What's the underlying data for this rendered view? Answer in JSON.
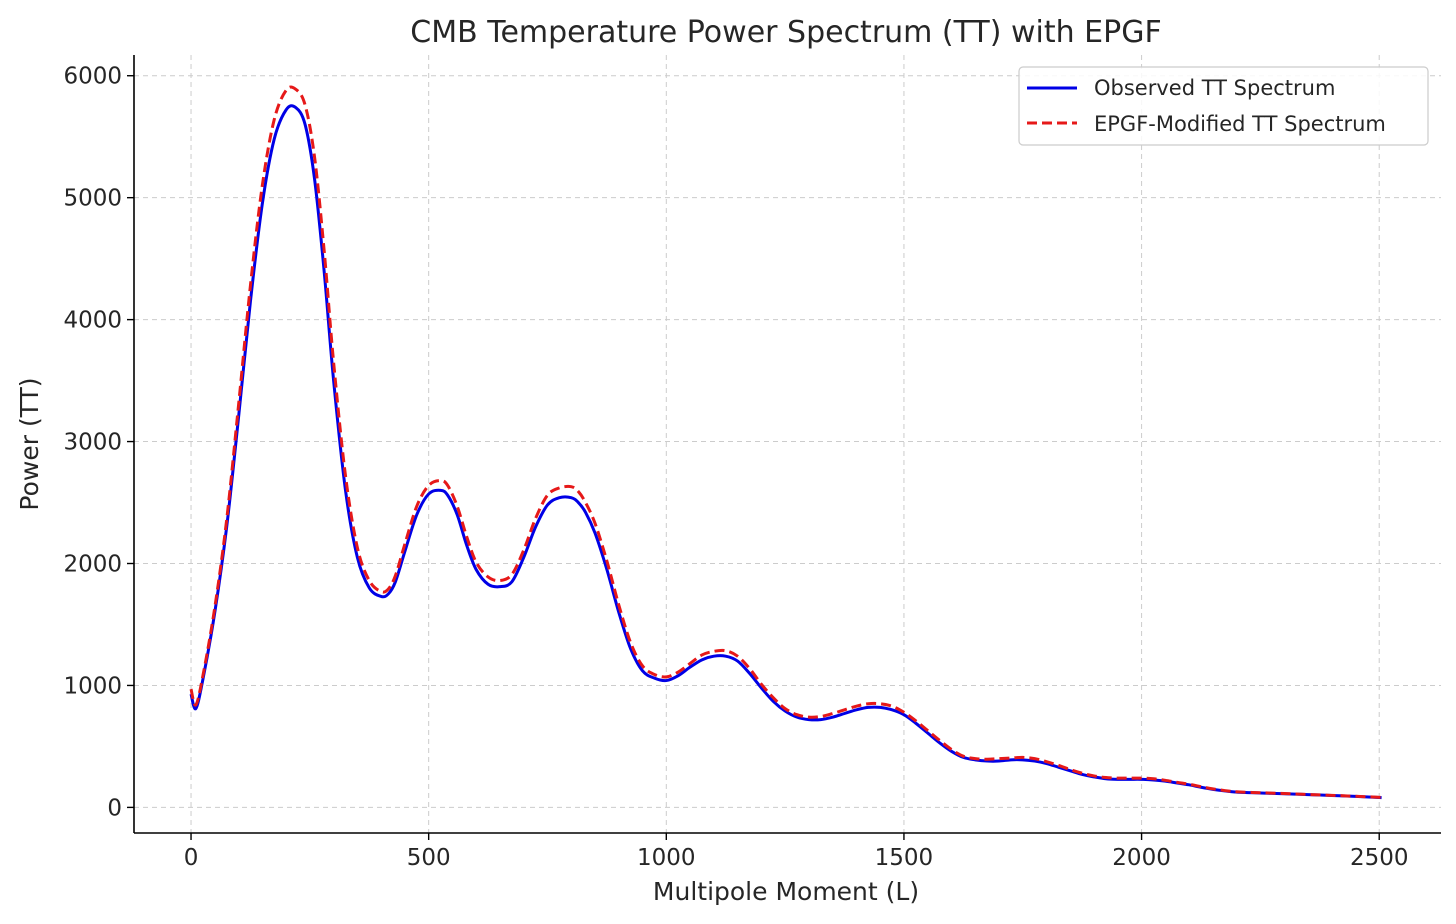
{
  "chart_data": {
    "type": "line",
    "title": "CMB Temperature Power Spectrum (TT) with EPGF",
    "xlabel": "Multipole Moment (L)",
    "ylabel": "Power (TT)",
    "xlim": [
      -120,
      2630
    ],
    "ylim": [
      -210,
      6170
    ],
    "xticks": [
      0,
      500,
      1000,
      1500,
      2000,
      2500
    ],
    "xtick_labels": [
      "0",
      "500",
      "1000",
      "1500",
      "2000",
      "2500"
    ],
    "yticks": [
      0,
      1000,
      2000,
      3000,
      4000,
      5000,
      6000
    ],
    "ytick_labels": [
      "0",
      "1000",
      "2000",
      "3000",
      "4000",
      "5000",
      "6000"
    ],
    "grid": true,
    "legend_position": "top-right",
    "series": [
      {
        "name": "Observed TT Spectrum",
        "color": "#0000e6",
        "style": "solid",
        "x": [
          0,
          10,
          25,
          50,
          75,
          100,
          125,
          150,
          175,
          200,
          220,
          240,
          260,
          280,
          300,
          325,
          350,
          375,
          400,
          415,
          430,
          450,
          475,
          500,
          525,
          540,
          560,
          580,
          600,
          625,
          650,
          675,
          700,
          725,
          750,
          775,
          800,
          815,
          830,
          850,
          875,
          900,
          925,
          950,
          975,
          1000,
          1025,
          1050,
          1075,
          1100,
          1125,
          1150,
          1175,
          1200,
          1225,
          1250,
          1275,
          1300,
          1325,
          1350,
          1375,
          1400,
          1425,
          1450,
          1475,
          1500,
          1525,
          1550,
          1575,
          1600,
          1625,
          1650,
          1675,
          1700,
          1725,
          1750,
          1775,
          1800,
          1825,
          1850,
          1875,
          1900,
          1925,
          1950,
          1975,
          2000,
          2025,
          2050,
          2075,
          2100,
          2125,
          2150,
          2175,
          2200,
          2250,
          2300,
          2350,
          2400,
          2450,
          2505
        ],
        "y": [
          930,
          810,
          1050,
          1600,
          2300,
          3200,
          4150,
          4950,
          5480,
          5720,
          5740,
          5600,
          5150,
          4400,
          3500,
          2600,
          2050,
          1800,
          1730,
          1750,
          1850,
          2100,
          2400,
          2570,
          2600,
          2560,
          2400,
          2150,
          1950,
          1830,
          1810,
          1850,
          2050,
          2300,
          2480,
          2540,
          2540,
          2500,
          2420,
          2250,
          1950,
          1600,
          1300,
          1120,
          1060,
          1040,
          1080,
          1150,
          1210,
          1240,
          1240,
          1200,
          1100,
          980,
          870,
          790,
          740,
          720,
          720,
          740,
          770,
          800,
          820,
          820,
          800,
          760,
          690,
          610,
          530,
          460,
          410,
          390,
          380,
          380,
          390,
          390,
          380,
          360,
          330,
          300,
          270,
          250,
          235,
          230,
          230,
          230,
          225,
          215,
          200,
          185,
          165,
          148,
          135,
          125,
          118,
          112,
          105,
          98,
          90,
          80
        ]
      },
      {
        "name": "EPGF-Modified TT Spectrum",
        "color": "#e61919",
        "style": "dashed",
        "x": [
          0,
          10,
          25,
          50,
          75,
          100,
          125,
          150,
          175,
          200,
          220,
          240,
          260,
          280,
          300,
          325,
          350,
          375,
          400,
          415,
          430,
          450,
          475,
          500,
          525,
          540,
          560,
          580,
          600,
          625,
          650,
          675,
          700,
          725,
          750,
          775,
          800,
          815,
          830,
          850,
          875,
          900,
          925,
          950,
          975,
          1000,
          1025,
          1050,
          1075,
          1100,
          1125,
          1150,
          1175,
          1200,
          1225,
          1250,
          1275,
          1300,
          1325,
          1350,
          1375,
          1400,
          1425,
          1450,
          1475,
          1500,
          1525,
          1550,
          1575,
          1600,
          1625,
          1650,
          1675,
          1700,
          1725,
          1750,
          1775,
          1800,
          1825,
          1850,
          1875,
          1900,
          1925,
          1950,
          1975,
          2000,
          2025,
          2050,
          2075,
          2100,
          2125,
          2150,
          2175,
          2200,
          2250,
          2300,
          2350,
          2400,
          2450,
          2505
        ],
        "y": [
          970,
          840,
          1080,
          1640,
          2360,
          3300,
          4280,
          5100,
          5640,
          5880,
          5890,
          5760,
          5330,
          4570,
          3650,
          2720,
          2130,
          1860,
          1770,
          1790,
          1900,
          2160,
          2470,
          2640,
          2680,
          2640,
          2470,
          2220,
          2010,
          1890,
          1860,
          1910,
          2110,
          2370,
          2560,
          2620,
          2630,
          2590,
          2500,
          2330,
          2020,
          1660,
          1350,
          1160,
          1090,
          1070,
          1110,
          1180,
          1250,
          1280,
          1285,
          1240,
          1140,
          1010,
          900,
          810,
          760,
          740,
          745,
          770,
          800,
          830,
          850,
          850,
          830,
          780,
          710,
          630,
          550,
          475,
          420,
          400,
          395,
          400,
          405,
          410,
          400,
          375,
          345,
          310,
          280,
          258,
          245,
          240,
          240,
          240,
          235,
          222,
          205,
          190,
          170,
          152,
          138,
          128,
          120,
          114,
          106,
          99,
          91,
          82
        ]
      }
    ]
  }
}
